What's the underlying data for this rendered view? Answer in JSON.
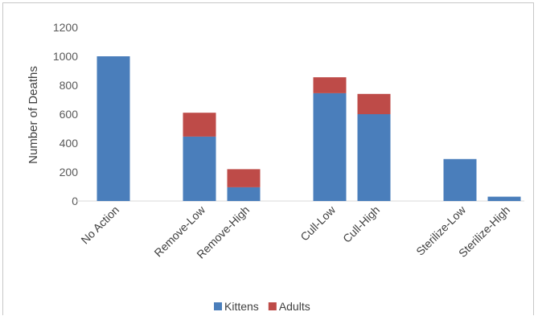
{
  "chart_data": {
    "type": "bar",
    "stacked": true,
    "categories": [
      "No Action",
      "Remove-Low",
      "Remove-High",
      "Cull-Low",
      "Cull-High",
      "Sterilize-Low",
      "Sterilize-High"
    ],
    "series": [
      {
        "name": "Kittens",
        "color": "#4a7ebb",
        "values": [
          1000,
          445,
          95,
          745,
          600,
          290,
          30
        ]
      },
      {
        "name": "Adults",
        "color": "#be4b48",
        "values": [
          0,
          165,
          125,
          110,
          140,
          0,
          0
        ]
      }
    ],
    "ylabel": "Number of Deaths",
    "ylim": [
      0,
      1200
    ],
    "yticks": [
      0,
      200,
      400,
      600,
      800,
      1000,
      1200
    ],
    "legend_position": "bottom",
    "grid": false
  }
}
